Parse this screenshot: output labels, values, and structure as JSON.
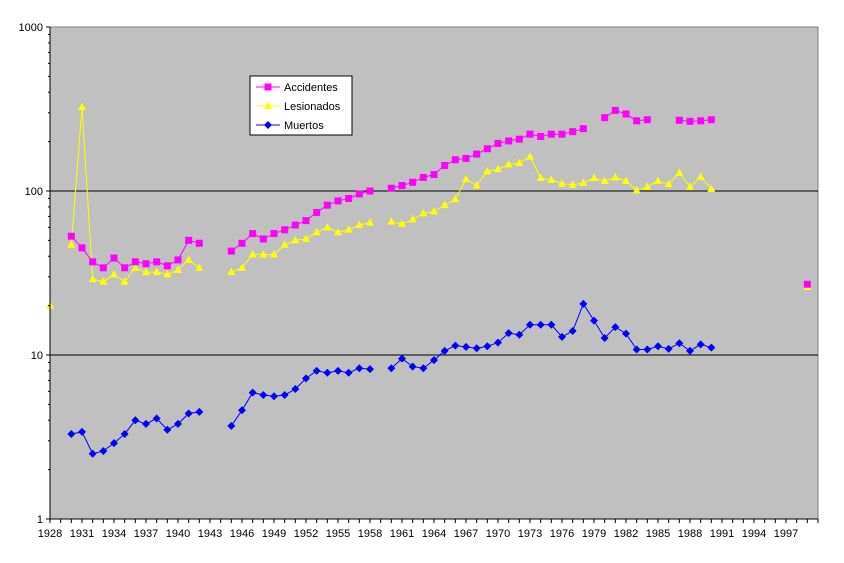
{
  "chart_data": {
    "type": "line",
    "title": "",
    "xlabel": "",
    "ylabel": "",
    "y_scale": "log",
    "ylim": [
      1,
      1000
    ],
    "xlim": [
      1928,
      2000
    ],
    "y_ticks": [
      1,
      10,
      100,
      1000
    ],
    "y_tick_labels": [
      "1",
      "10",
      "100",
      "1000"
    ],
    "x_ticks": [
      1928,
      1931,
      1934,
      1937,
      1940,
      1943,
      1946,
      1949,
      1952,
      1955,
      1958,
      1961,
      1964,
      1967,
      1970,
      1973,
      1976,
      1979,
      1982,
      1985,
      1988,
      1991,
      1994,
      1997
    ],
    "x_tick_labels": [
      "1928",
      "1931",
      "1934",
      "1937",
      "1940",
      "1943",
      "1946",
      "1949",
      "1952",
      "1955",
      "1958",
      "1961",
      "1964",
      "1967",
      "1970",
      "1973",
      "1976",
      "1979",
      "1982",
      "1985",
      "1988",
      "1991",
      "1994",
      "1997"
    ],
    "grid": "horizontal major lines",
    "plot_background": "#c0c0c0",
    "legend_position": "upper-left inside plot",
    "series": [
      {
        "name": "Accidentes",
        "color": "#ff00ff",
        "marker": "square",
        "x": [
          1930,
          1931,
          1932,
          1933,
          1934,
          1935,
          1936,
          1937,
          1938,
          1939,
          1940,
          1941,
          1942,
          null,
          1945,
          1946,
          1947,
          1948,
          1949,
          1950,
          1951,
          1952,
          1953,
          1954,
          1955,
          1956,
          1957,
          1958,
          null,
          1960,
          1961,
          1962,
          1963,
          1964,
          1965,
          1966,
          1967,
          1968,
          1969,
          1970,
          1971,
          1972,
          1973,
          1974,
          1975,
          1976,
          1977,
          1978,
          null,
          1980,
          1981,
          1982,
          1983,
          1984,
          null,
          1987,
          1988,
          1989,
          1990,
          null,
          1999
        ],
        "values": [
          53,
          45,
          37,
          34,
          39,
          34,
          37,
          36,
          37,
          35,
          38,
          50,
          48,
          null,
          43,
          48,
          55,
          51,
          55,
          58,
          62,
          66,
          74,
          82,
          87,
          90,
          96,
          100,
          null,
          104,
          108,
          113,
          121,
          126,
          143,
          155,
          158,
          168,
          181,
          195,
          202,
          207,
          222,
          215,
          222,
          222,
          230,
          240,
          null,
          280,
          310,
          295,
          268,
          272,
          null,
          270,
          266,
          268,
          272,
          null,
          27
        ]
      },
      {
        "name": "Lesionados",
        "color": "#ffff00",
        "marker": "triangle",
        "x": [
          1928,
          null,
          1930,
          1931,
          1932,
          1933,
          1934,
          1935,
          1936,
          1937,
          1938,
          1939,
          1940,
          1941,
          1942,
          null,
          1945,
          1946,
          1947,
          1948,
          1949,
          1950,
          1951,
          1952,
          1953,
          1954,
          1955,
          1956,
          1957,
          1958,
          null,
          1960,
          1961,
          1962,
          1963,
          1964,
          1965,
          1966,
          1967,
          1968,
          1969,
          1970,
          1971,
          1972,
          1973,
          1974,
          1975,
          1976,
          1977,
          1978,
          1979,
          1980,
          1981,
          1982,
          1983,
          1984,
          1985,
          1986,
          1987,
          1988,
          1989,
          1990,
          null,
          1999
        ],
        "values": [
          20,
          null,
          47,
          325,
          29,
          28,
          31,
          28,
          34,
          32,
          32,
          31,
          33,
          38,
          34,
          null,
          32,
          34,
          41,
          41,
          41,
          47,
          50,
          51,
          56,
          60,
          56,
          58,
          62,
          64,
          null,
          65,
          63,
          67,
          73,
          75,
          82,
          89,
          118,
          108,
          132,
          136,
          145,
          148,
          162,
          120,
          117,
          111,
          109,
          112,
          120,
          115,
          121,
          115,
          101,
          106,
          115,
          110,
          129,
          106,
          122,
          103,
          null,
          26
        ]
      },
      {
        "name": "Muertos",
        "color": "#0000ff",
        "marker": "diamond",
        "x": [
          1930,
          1931,
          1932,
          1933,
          1934,
          1935,
          1936,
          1937,
          1938,
          1939,
          1940,
          1941,
          1942,
          null,
          1945,
          1946,
          1947,
          1948,
          1949,
          1950,
          1951,
          1952,
          1953,
          1954,
          1955,
          1956,
          1957,
          1958,
          null,
          1960,
          1961,
          1962,
          1963,
          1964,
          1965,
          1966,
          1967,
          1968,
          1969,
          1970,
          1971,
          1972,
          1973,
          1974,
          1975,
          1976,
          1977,
          1978,
          1979,
          1980,
          1981,
          1982,
          1983,
          1984,
          1985,
          1986,
          1987,
          1988,
          1989,
          1990
        ],
        "values": [
          3.3,
          3.4,
          2.5,
          2.6,
          2.9,
          3.3,
          4.0,
          3.8,
          4.1,
          3.5,
          3.8,
          4.4,
          4.5,
          null,
          3.7,
          4.6,
          5.9,
          5.7,
          5.6,
          5.7,
          6.2,
          7.2,
          8.0,
          7.8,
          8.0,
          7.8,
          8.3,
          8.2,
          null,
          8.3,
          9.5,
          8.5,
          8.3,
          9.3,
          10.6,
          11.4,
          11.2,
          11.0,
          11.3,
          11.9,
          13.6,
          13.3,
          15.3,
          15.3,
          15.3,
          12.9,
          14.0,
          20.5,
          16.2,
          12.7,
          14.8,
          13.5,
          10.8,
          10.8,
          11.3,
          10.9,
          11.8,
          10.6,
          11.6,
          11.1
        ]
      }
    ]
  }
}
